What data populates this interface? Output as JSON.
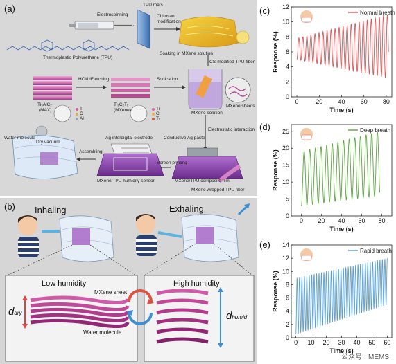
{
  "panel_a": {
    "label": "(a)",
    "texts": {
      "tpu_mats": "TPU mats",
      "electrospinning": "Electrospinning",
      "chitosan": "Chitosan",
      "modification": "modification",
      "tpu_name": "Thermoplastic Polyurethane (TPU)",
      "soaking": "Soaking in MXene solution",
      "cs_fiber": "CS-modified TPU fiber",
      "hcl_lif": "HCl/LiF etching",
      "sonication": "Sonication",
      "max_name": "Ti₃AlC₂",
      "max_sub": "(MAX)",
      "mxene_name": "Ti₃C₂Tₓ",
      "mxene_sub": "(MXene)",
      "legend_ti": "Ti",
      "legend_c": "C",
      "legend_al": "Al",
      "legend_tx": "Tₓ",
      "mxene_solution": "MXene solution",
      "mxene_sheets": "MXene sheets",
      "ag_electrode": "Ag interdigital electrode",
      "conductive_ag": "Conductive Ag paste",
      "electrostatic": "Electrostatic interaction",
      "assembling": "Assembling",
      "screen_printing": "Screen printing",
      "sensor": "MXene/TPU humidity sensor",
      "composite": "MXene/TPU composite film",
      "wrapped_fiber": "MXene wrapped TPU fiber",
      "water_molecule": "Water molecule",
      "dry_vacuum": "Dry vacuum"
    }
  },
  "panel_b": {
    "label": "(b)",
    "inhaling": "Inhaling",
    "exhaling": "Exhaling",
    "low_humidity": "Low humidity",
    "high_humidity": "High humidity",
    "mxene_sheet": "MXene sheet",
    "water_molecule": "Water molecule",
    "d_dry_main": "d",
    "d_dry_sub": "dry",
    "d_humid_main": "d",
    "d_humid_sub": "humid"
  },
  "chart_data": [
    {
      "panel": "(c)",
      "type": "line",
      "title": "",
      "legend": "Normal breath",
      "color": "#e05555",
      "xlabel": "Time (s)",
      "ylabel": "Response (%)",
      "xlim": [
        -5,
        85
      ],
      "ylim": [
        0,
        12
      ],
      "xticks": [
        0,
        20,
        40,
        60,
        80
      ],
      "yticks": [
        0,
        2,
        4,
        6,
        8,
        10,
        12
      ],
      "start": 0,
      "end": 82,
      "period": 3.6,
      "base_start": 5,
      "base_end": 2.5,
      "peak_start": 7.8,
      "peak_end": 11.0
    },
    {
      "panel": "(d)",
      "type": "line",
      "title": "",
      "legend": "Deep breath",
      "color": "#5aa83a",
      "xlabel": "Time (s)",
      "ylabel": "Response (%)",
      "xlim": [
        -10,
        90
      ],
      "ylim": [
        0,
        27
      ],
      "xticks": [
        0,
        20,
        40,
        60,
        80
      ],
      "yticks": [
        0,
        5,
        10,
        15,
        20,
        25
      ],
      "start": 0,
      "end": 78,
      "period": 5.6,
      "base_start": 3,
      "base_end": 6,
      "peak_start": 19,
      "peak_end": 25
    },
    {
      "panel": "(e)",
      "type": "line",
      "title": "",
      "legend": "Rapid breath",
      "color": "#5a9fd4",
      "xlabel": "Time (s)",
      "ylabel": "Response (%)",
      "xlim": [
        -3,
        63
      ],
      "ylim": [
        0,
        14
      ],
      "xticks": [
        0,
        10,
        20,
        30,
        40,
        50,
        60
      ],
      "yticks": [
        0,
        2,
        4,
        6,
        8,
        10,
        12,
        14
      ],
      "start": 0,
      "end": 60,
      "period": 1.6,
      "base_start": 0.5,
      "base_end": 5,
      "peak_start": 9,
      "peak_end": 12
    }
  ],
  "watermark": "公众号 · MEMS"
}
